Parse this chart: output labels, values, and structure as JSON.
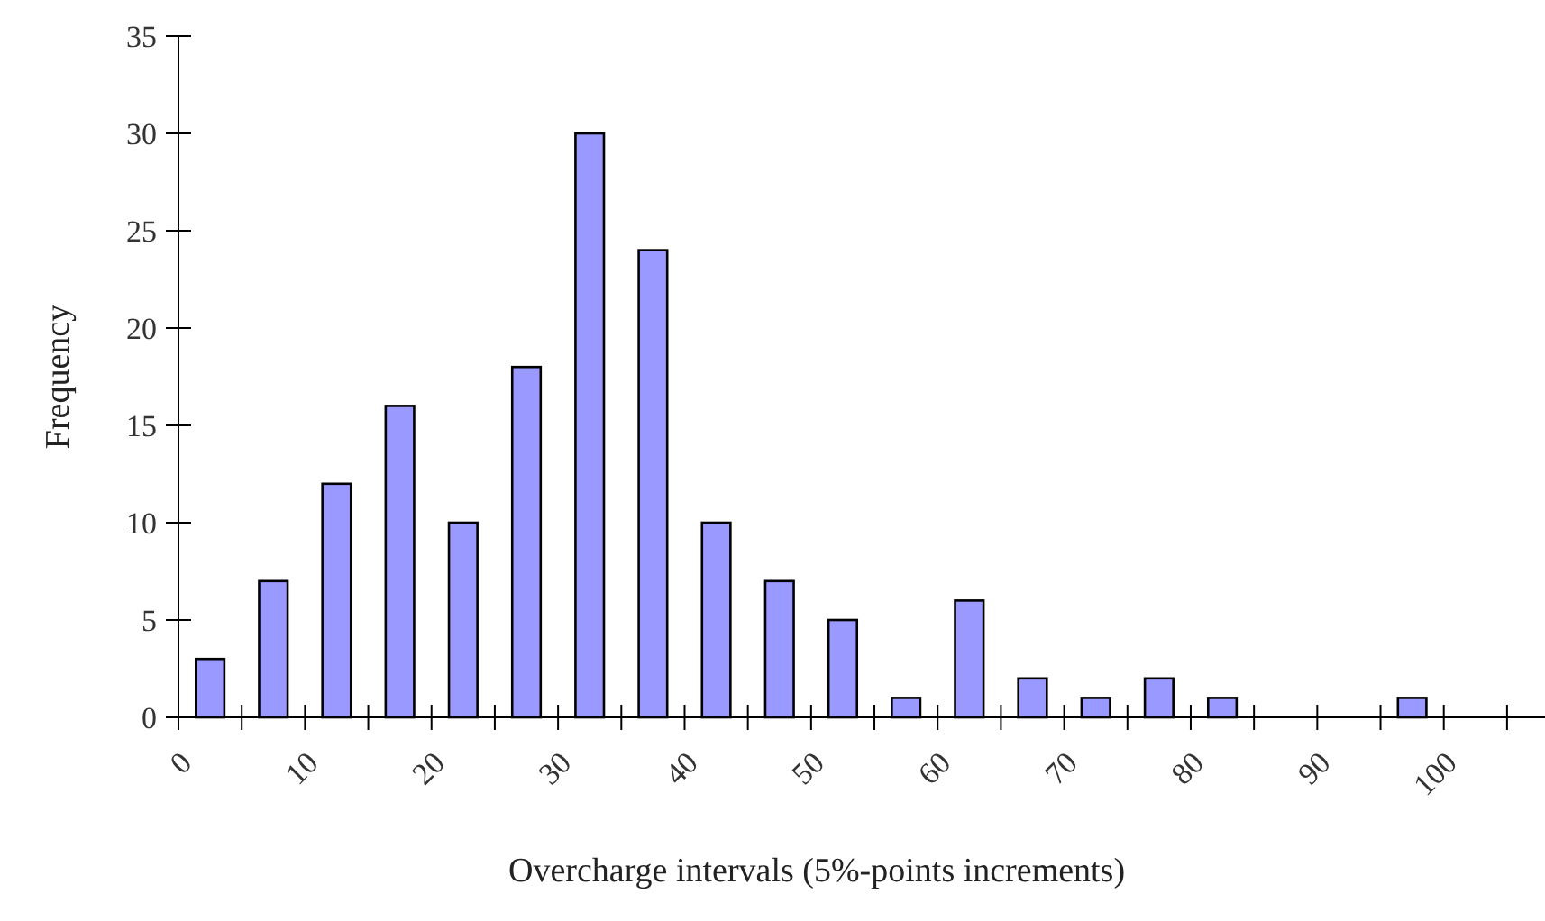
{
  "chart_data": {
    "type": "histogram",
    "xlabel": "Overcharge intervals (5%-points increments)",
    "ylabel": "Frequency",
    "bins": [
      0,
      5,
      10,
      15,
      20,
      25,
      30,
      35,
      40,
      45,
      50,
      55,
      60,
      65,
      70,
      75,
      80,
      85,
      90,
      95,
      100,
      105
    ],
    "values": [
      3,
      7,
      12,
      16,
      10,
      18,
      30,
      24,
      10,
      7,
      5,
      1,
      6,
      2,
      1,
      2,
      1,
      0,
      0,
      1,
      0
    ],
    "color": "#9999ff",
    "xlim": [
      0,
      108
    ],
    "xticks": [
      0,
      {
        "value": 5,
        "label": null
      },
      10,
      {
        "value": 15,
        "label": null
      },
      20,
      {
        "value": 25,
        "label": null
      },
      30,
      {
        "value": 35,
        "label": null
      },
      40,
      {
        "value": 45,
        "label": null
      },
      50,
      {
        "value": 55,
        "label": null
      },
      60,
      {
        "value": 65,
        "label": null
      },
      70,
      {
        "value": 75,
        "label": null
      },
      80,
      {
        "value": 85,
        "label": null
      },
      90,
      {
        "value": 95,
        "label": null
      },
      100,
      {
        "value": 105,
        "label": null
      }
    ],
    "ylim": [
      0,
      35
    ],
    "yticks": [
      0,
      5,
      10,
      15,
      20,
      25,
      30,
      35
    ],
    "grid": false
  }
}
